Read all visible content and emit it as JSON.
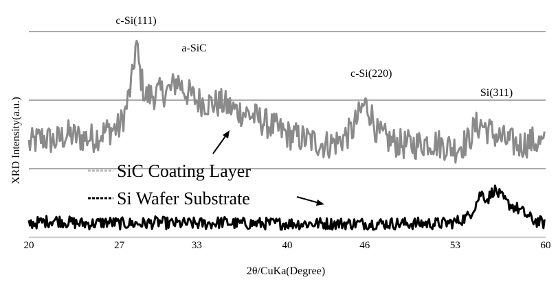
{
  "chart_data": {
    "type": "line",
    "title": "",
    "xlabel": "2θ/CuKa(Degree)",
    "ylabel": "XRD Intensity(a.u.)",
    "xlim": [
      20,
      60
    ],
    "x_ticks": [
      20,
      27,
      33,
      40,
      46,
      53,
      60
    ],
    "x_tick_labels": [
      "20",
      "27",
      "33",
      "40",
      "46",
      "53",
      "60"
    ],
    "ylim": [
      0,
      3
    ],
    "y_gridlines": [
      1,
      2,
      3
    ],
    "grid": "horizontal",
    "legend_position": "lower-left",
    "series": [
      {
        "name": "SiC Coating Layer",
        "color": "#8a8a8a",
        "x": [
          20,
          21,
          22,
          23,
          24,
          25,
          26,
          27,
          27.5,
          28,
          28.3,
          28.6,
          29,
          30,
          31,
          31.5,
          32,
          33,
          34,
          35,
          36,
          37,
          38,
          39,
          40,
          41,
          42,
          43,
          44,
          45,
          45.5,
          46,
          46.5,
          47,
          48,
          49,
          50,
          51,
          52,
          53,
          54,
          54.5,
          55,
          56,
          57,
          58,
          59,
          60
        ],
        "y": [
          1.35,
          1.45,
          1.4,
          1.5,
          1.45,
          1.45,
          1.55,
          1.6,
          1.85,
          2.3,
          2.85,
          2.4,
          2.05,
          2.1,
          2.15,
          2.3,
          2.15,
          2.0,
          1.95,
          1.95,
          1.85,
          1.8,
          1.7,
          1.6,
          1.5,
          1.45,
          1.4,
          1.35,
          1.4,
          1.55,
          1.75,
          1.95,
          1.8,
          1.5,
          1.4,
          1.35,
          1.35,
          1.4,
          1.35,
          1.3,
          1.4,
          1.6,
          1.65,
          1.5,
          1.4,
          1.35,
          1.4,
          1.35
        ]
      },
      {
        "name": "Si Wafer Substrate",
        "color": "#000000",
        "x": [
          20,
          21,
          22,
          23,
          24,
          25,
          26,
          27,
          28,
          29,
          30,
          31,
          32,
          33,
          34,
          35,
          36,
          37,
          38,
          39,
          40,
          41,
          42,
          43,
          44,
          45,
          46,
          47,
          48,
          49,
          50,
          51,
          52,
          53,
          54,
          54.5,
          55,
          55.5,
          56,
          56.5,
          57,
          58,
          59,
          60
        ],
        "y": [
          0.2,
          0.22,
          0.25,
          0.22,
          0.2,
          0.2,
          0.22,
          0.2,
          0.2,
          0.2,
          0.22,
          0.2,
          0.2,
          0.2,
          0.2,
          0.22,
          0.2,
          0.2,
          0.2,
          0.2,
          0.2,
          0.2,
          0.2,
          0.2,
          0.2,
          0.2,
          0.2,
          0.2,
          0.2,
          0.2,
          0.2,
          0.2,
          0.2,
          0.22,
          0.3,
          0.45,
          0.65,
          0.55,
          0.7,
          0.6,
          0.5,
          0.4,
          0.25,
          0.2
        ]
      }
    ],
    "peak_labels": [
      {
        "text": "c-Si(111)",
        "x": 28.3
      },
      {
        "text": "a-SiC",
        "x": 32.8
      },
      {
        "text": "c-Si(220)",
        "x": 46.5
      },
      {
        "text": "Si(311)",
        "x": 56.2
      }
    ]
  }
}
